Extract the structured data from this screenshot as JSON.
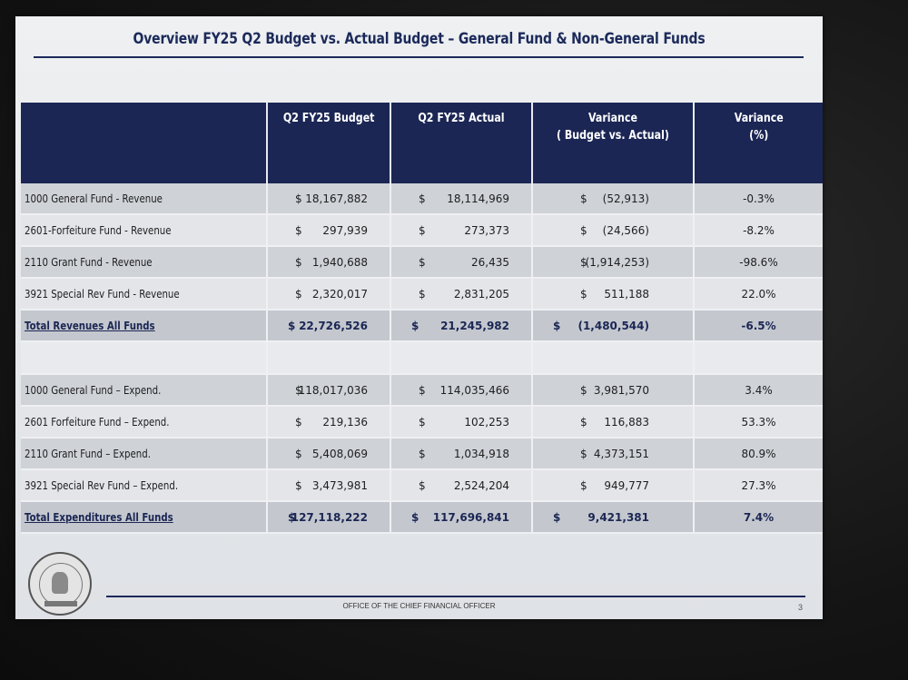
{
  "title": "Overview FY25 Q2 Budget vs. Actual Budget – General Fund & Non-General Funds",
  "headers": {
    "budget": "Q2 FY25 Budget",
    "actual": "Q2 FY25 Actual",
    "variance_line1": "Variance",
    "variance_line2": "( Budget vs. Actual)",
    "variance_pct_line1": "Variance",
    "variance_pct_line2": "(%)"
  },
  "currency_symbol": "$",
  "revenue_rows": [
    {
      "label": "1000 General Fund - Revenue",
      "budget": "18,167,882",
      "actual": "18,114,969",
      "variance": "(52,913)",
      "pct": "-0.3%"
    },
    {
      "label": "2601-Forfeiture Fund - Revenue",
      "budget": "297,939",
      "actual": "273,373",
      "variance": "(24,566)",
      "pct": "-8.2%"
    },
    {
      "label": "2110 Grant Fund - Revenue",
      "budget": "1,940,688",
      "actual": "26,435",
      "variance": "(1,914,253)",
      "pct": "-98.6%"
    },
    {
      "label": "3921 Special Rev Fund - Revenue",
      "budget": "2,320,017",
      "actual": "2,831,205",
      "variance": "511,188",
      "pct": "22.0%"
    }
  ],
  "revenue_total": {
    "label": "Total Revenues All Funds",
    "budget": "22,726,526",
    "actual": "21,245,982",
    "variance": "(1,480,544)",
    "pct": "-6.5%"
  },
  "expense_rows": [
    {
      "label": "1000 General Fund – Expend.",
      "budget": "118,017,036",
      "actual": "114,035,466",
      "variance": "3,981,570",
      "pct": "3.4%"
    },
    {
      "label": "2601 Forfeiture Fund – Expend.",
      "budget": "219,136",
      "actual": "102,253",
      "variance": "116,883",
      "pct": "53.3%"
    },
    {
      "label": "2110 Grant Fund – Expend.",
      "budget": "5,408,069",
      "actual": "1,034,918",
      "variance": "4,373,151",
      "pct": "80.9%"
    },
    {
      "label": "3921 Special Rev Fund – Expend.",
      "budget": "3,473,981",
      "actual": "2,524,204",
      "variance": "949,777",
      "pct": "27.3%"
    }
  ],
  "expense_total": {
    "label": "Total Expenditures All Funds",
    "budget": "127,118,222",
    "actual": "117,696,841",
    "variance": "9,421,381",
    "pct": "7.4%"
  },
  "footer": {
    "office": "OFFICE OF THE CHIEF FINANCIAL OFFICER",
    "page": "3"
  },
  "colors": {
    "header_navy": "#1b2654",
    "row_dark": "#cfd2d7",
    "row_light": "#e3e5e9"
  },
  "seal_text": "THE CITY OF DETROIT MICHIGAN"
}
